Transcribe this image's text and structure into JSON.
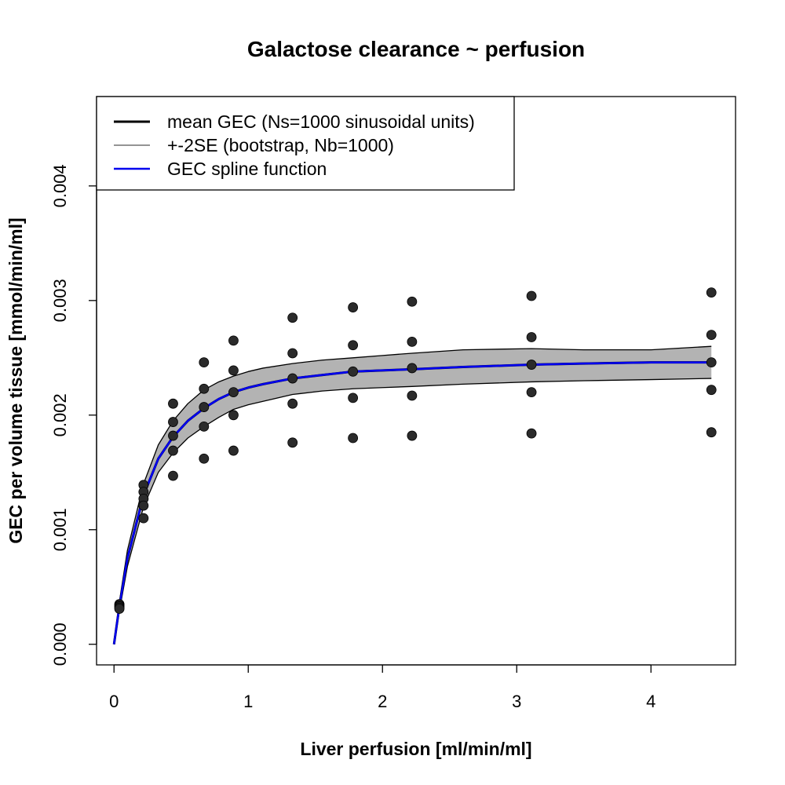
{
  "chart_data": {
    "type": "scatter",
    "title": "Galactose clearance ~ perfusion",
    "xlabel": "Liver perfusion [ml/min/ml]",
    "ylabel": "GEC per volume tissue [mmol/min/ml]",
    "xlim": [
      -0.13,
      4.63
    ],
    "ylim": [
      -0.00018,
      0.00478
    ],
    "x_ticks": [
      0,
      1,
      2,
      3,
      4
    ],
    "x_tick_labels": [
      "0",
      "1",
      "2",
      "3",
      "4"
    ],
    "y_ticks": [
      0.0,
      0.001,
      0.002,
      0.003,
      0.004
    ],
    "y_tick_labels": [
      "0.000",
      "0.001",
      "0.002",
      "0.003",
      "0.004"
    ],
    "grid": false,
    "legend": {
      "position": "top-left",
      "entries": [
        {
          "label": "mean GEC (Ns=1000 sinusoidal units)",
          "color": "#000000",
          "style": "thick-line"
        },
        {
          "label": "+-2SE (bootstrap, Nb=1000)",
          "color": "#555555",
          "style": "thin-line"
        },
        {
          "label": "GEC spline function",
          "color": "#0000ee",
          "style": "line"
        }
      ]
    },
    "colors": {
      "points": "#2b2b2b",
      "band": "#b3b3b3",
      "spline": "#0000ee",
      "mean": "#000000"
    },
    "points": [
      {
        "x": 0.04,
        "y": 0.00035
      },
      {
        "x": 0.04,
        "y": 0.00034
      },
      {
        "x": 0.04,
        "y": 0.00033
      },
      {
        "x": 0.04,
        "y": 0.00032
      },
      {
        "x": 0.04,
        "y": 0.00031
      },
      {
        "x": 0.22,
        "y": 0.00139
      },
      {
        "x": 0.22,
        "y": 0.00133
      },
      {
        "x": 0.22,
        "y": 0.00127
      },
      {
        "x": 0.22,
        "y": 0.00121
      },
      {
        "x": 0.22,
        "y": 0.0011
      },
      {
        "x": 0.44,
        "y": 0.0021
      },
      {
        "x": 0.44,
        "y": 0.00194
      },
      {
        "x": 0.44,
        "y": 0.00182
      },
      {
        "x": 0.44,
        "y": 0.00169
      },
      {
        "x": 0.44,
        "y": 0.00147
      },
      {
        "x": 0.67,
        "y": 0.00246
      },
      {
        "x": 0.67,
        "y": 0.00223
      },
      {
        "x": 0.67,
        "y": 0.00207
      },
      {
        "x": 0.67,
        "y": 0.0019
      },
      {
        "x": 0.67,
        "y": 0.00162
      },
      {
        "x": 0.89,
        "y": 0.00265
      },
      {
        "x": 0.89,
        "y": 0.00239
      },
      {
        "x": 0.89,
        "y": 0.0022
      },
      {
        "x": 0.89,
        "y": 0.002
      },
      {
        "x": 0.89,
        "y": 0.00169
      },
      {
        "x": 1.33,
        "y": 0.00285
      },
      {
        "x": 1.33,
        "y": 0.00254
      },
      {
        "x": 1.33,
        "y": 0.00232
      },
      {
        "x": 1.33,
        "y": 0.0021
      },
      {
        "x": 1.33,
        "y": 0.00176
      },
      {
        "x": 1.78,
        "y": 0.00294
      },
      {
        "x": 1.78,
        "y": 0.00261
      },
      {
        "x": 1.78,
        "y": 0.00238
      },
      {
        "x": 1.78,
        "y": 0.00215
      },
      {
        "x": 1.78,
        "y": 0.0018
      },
      {
        "x": 2.22,
        "y": 0.00299
      },
      {
        "x": 2.22,
        "y": 0.00264
      },
      {
        "x": 2.22,
        "y": 0.00241
      },
      {
        "x": 2.22,
        "y": 0.00217
      },
      {
        "x": 2.22,
        "y": 0.00182
      },
      {
        "x": 3.11,
        "y": 0.00304
      },
      {
        "x": 3.11,
        "y": 0.00268
      },
      {
        "x": 3.11,
        "y": 0.00244
      },
      {
        "x": 3.11,
        "y": 0.0022
      },
      {
        "x": 3.11,
        "y": 0.00184
      },
      {
        "x": 4.45,
        "y": 0.00307
      },
      {
        "x": 4.45,
        "y": 0.0027
      },
      {
        "x": 4.45,
        "y": 0.00246
      },
      {
        "x": 4.45,
        "y": 0.00222
      },
      {
        "x": 4.45,
        "y": 0.00185
      }
    ],
    "series": [
      {
        "name": "GEC spline function",
        "x": [
          0,
          0.04,
          0.1,
          0.22,
          0.33,
          0.44,
          0.55,
          0.67,
          0.78,
          0.89,
          1.0,
          1.11,
          1.33,
          1.55,
          1.78,
          2.0,
          2.22,
          2.6,
          3.11,
          3.5,
          4.0,
          4.45
        ],
        "y": [
          0.0,
          0.00033,
          0.00075,
          0.0013,
          0.00162,
          0.00181,
          0.00195,
          0.00206,
          0.00214,
          0.0022,
          0.00224,
          0.00227,
          0.00232,
          0.00235,
          0.00238,
          0.00239,
          0.0024,
          0.00242,
          0.00244,
          0.00245,
          0.00246,
          0.00246
        ]
      },
      {
        "name": "+-2SE upper",
        "x": [
          0,
          0.04,
          0.1,
          0.22,
          0.33,
          0.44,
          0.55,
          0.67,
          0.78,
          0.89,
          1.0,
          1.11,
          1.33,
          1.55,
          1.78,
          2.0,
          2.22,
          2.6,
          3.11,
          3.5,
          4.0,
          4.45
        ],
        "y": [
          0.0,
          0.00037,
          0.00082,
          0.0014,
          0.00174,
          0.00195,
          0.0021,
          0.00222,
          0.00229,
          0.00234,
          0.00238,
          0.00241,
          0.00245,
          0.00248,
          0.0025,
          0.00252,
          0.00254,
          0.00257,
          0.00258,
          0.00257,
          0.00257,
          0.0026
        ]
      },
      {
        "name": "+-2SE lower",
        "x": [
          0,
          0.04,
          0.1,
          0.22,
          0.33,
          0.44,
          0.55,
          0.67,
          0.78,
          0.89,
          1.0,
          1.11,
          1.33,
          1.55,
          1.78,
          2.0,
          2.22,
          2.6,
          3.11,
          3.5,
          4.0,
          4.45
        ],
        "y": [
          0.0,
          0.00029,
          0.00068,
          0.0012,
          0.0015,
          0.00167,
          0.0018,
          0.0019,
          0.00198,
          0.00205,
          0.00209,
          0.00212,
          0.00218,
          0.00221,
          0.00223,
          0.00224,
          0.00225,
          0.00227,
          0.00229,
          0.0023,
          0.00231,
          0.00232
        ]
      }
    ]
  }
}
